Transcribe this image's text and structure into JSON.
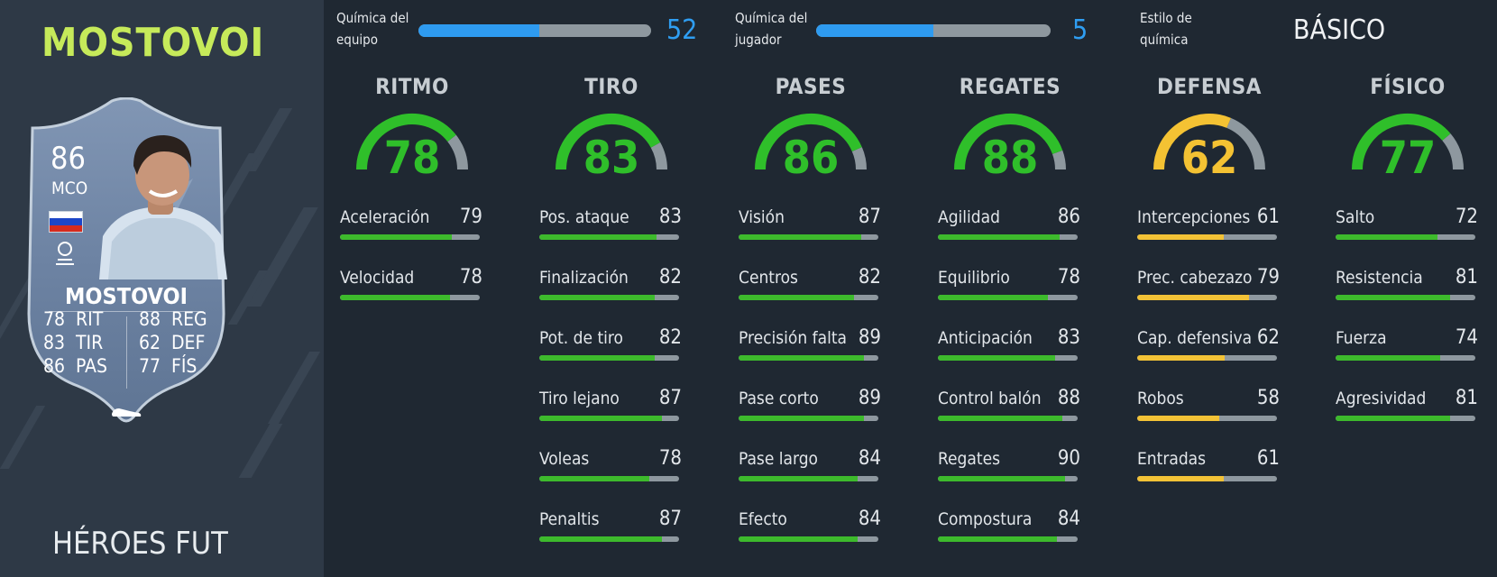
{
  "player": {
    "name": "MOSTOVOI",
    "card_type": "HÉROES FUT",
    "card": {
      "rating": "86",
      "position": "MCO",
      "name": "MOSTOVOI",
      "stats_left": [
        {
          "value": "78",
          "label": "RIT"
        },
        {
          "value": "83",
          "label": "TIR"
        },
        {
          "value": "86",
          "label": "PAS"
        }
      ],
      "stats_right": [
        {
          "value": "88",
          "label": "REG"
        },
        {
          "value": "62",
          "label": "DEF"
        },
        {
          "value": "77",
          "label": "FÍS"
        }
      ],
      "flag_colors": [
        "#ffffff",
        "#1c46c8",
        "#d52b1e"
      ],
      "league_logo": "laliga-logo-icon"
    }
  },
  "chemistry": {
    "team": {
      "label_1": "Química del",
      "label_2": "equipo",
      "value": "52",
      "fill": 0.52
    },
    "player": {
      "label_1": "Química del",
      "label_2": "jugador",
      "value": "5",
      "fill": 0.5
    },
    "style": {
      "label_1": "Estilo de",
      "label_2": "química",
      "value": "BÁSICO"
    }
  },
  "colors": {
    "green": "#3dba2c",
    "yellow": "#f2c236",
    "gauge_green": "#2fbf2a",
    "gauge_yellow": "#f4c233",
    "bar_track": "#8e989f",
    "chem_blue": "#2e9bf0",
    "name_green": "#c6ea5a"
  },
  "categories": [
    {
      "name": "RITMO",
      "value": "78",
      "color": "green",
      "stats": [
        {
          "label": "Aceleración",
          "value": "79"
        },
        {
          "label": "Velocidad",
          "value": "78"
        }
      ]
    },
    {
      "name": "TIRO",
      "value": "83",
      "color": "green",
      "stats": [
        {
          "label": "Pos. ataque",
          "value": "83"
        },
        {
          "label": "Finalización",
          "value": "82"
        },
        {
          "label": "Pot. de tiro",
          "value": "82"
        },
        {
          "label": "Tiro lejano",
          "value": "87"
        },
        {
          "label": "Voleas",
          "value": "78"
        },
        {
          "label": "Penaltis",
          "value": "87"
        }
      ]
    },
    {
      "name": "PASES",
      "value": "86",
      "color": "green",
      "stats": [
        {
          "label": "Visión",
          "value": "87"
        },
        {
          "label": "Centros",
          "value": "82"
        },
        {
          "label": "Precisión falta",
          "value": "89"
        },
        {
          "label": "Pase corto",
          "value": "89"
        },
        {
          "label": "Pase largo",
          "value": "84"
        },
        {
          "label": "Efecto",
          "value": "84"
        }
      ]
    },
    {
      "name": "REGATES",
      "value": "88",
      "color": "green",
      "stats": [
        {
          "label": "Agilidad",
          "value": "86"
        },
        {
          "label": "Equilibrio",
          "value": "78"
        },
        {
          "label": "Anticipación",
          "value": "83"
        },
        {
          "label": "Control balón",
          "value": "88"
        },
        {
          "label": "Regates",
          "value": "90"
        },
        {
          "label": "Compostura",
          "value": "84"
        }
      ]
    },
    {
      "name": "DEFENSA",
      "value": "62",
      "color": "yellow",
      "stats": [
        {
          "label": "Intercepciones",
          "value": "61"
        },
        {
          "label": "Prec. cabezazo",
          "value": "79"
        },
        {
          "label": "Cap. defensiva",
          "value": "62"
        },
        {
          "label": "Robos",
          "value": "58"
        },
        {
          "label": "Entradas",
          "value": "61"
        }
      ]
    },
    {
      "name": "FÍSICO",
      "value": "77",
      "color": "green",
      "stats": [
        {
          "label": "Salto",
          "value": "72"
        },
        {
          "label": "Resistencia",
          "value": "81"
        },
        {
          "label": "Fuerza",
          "value": "74"
        },
        {
          "label": "Agresividad",
          "value": "81"
        }
      ]
    }
  ]
}
